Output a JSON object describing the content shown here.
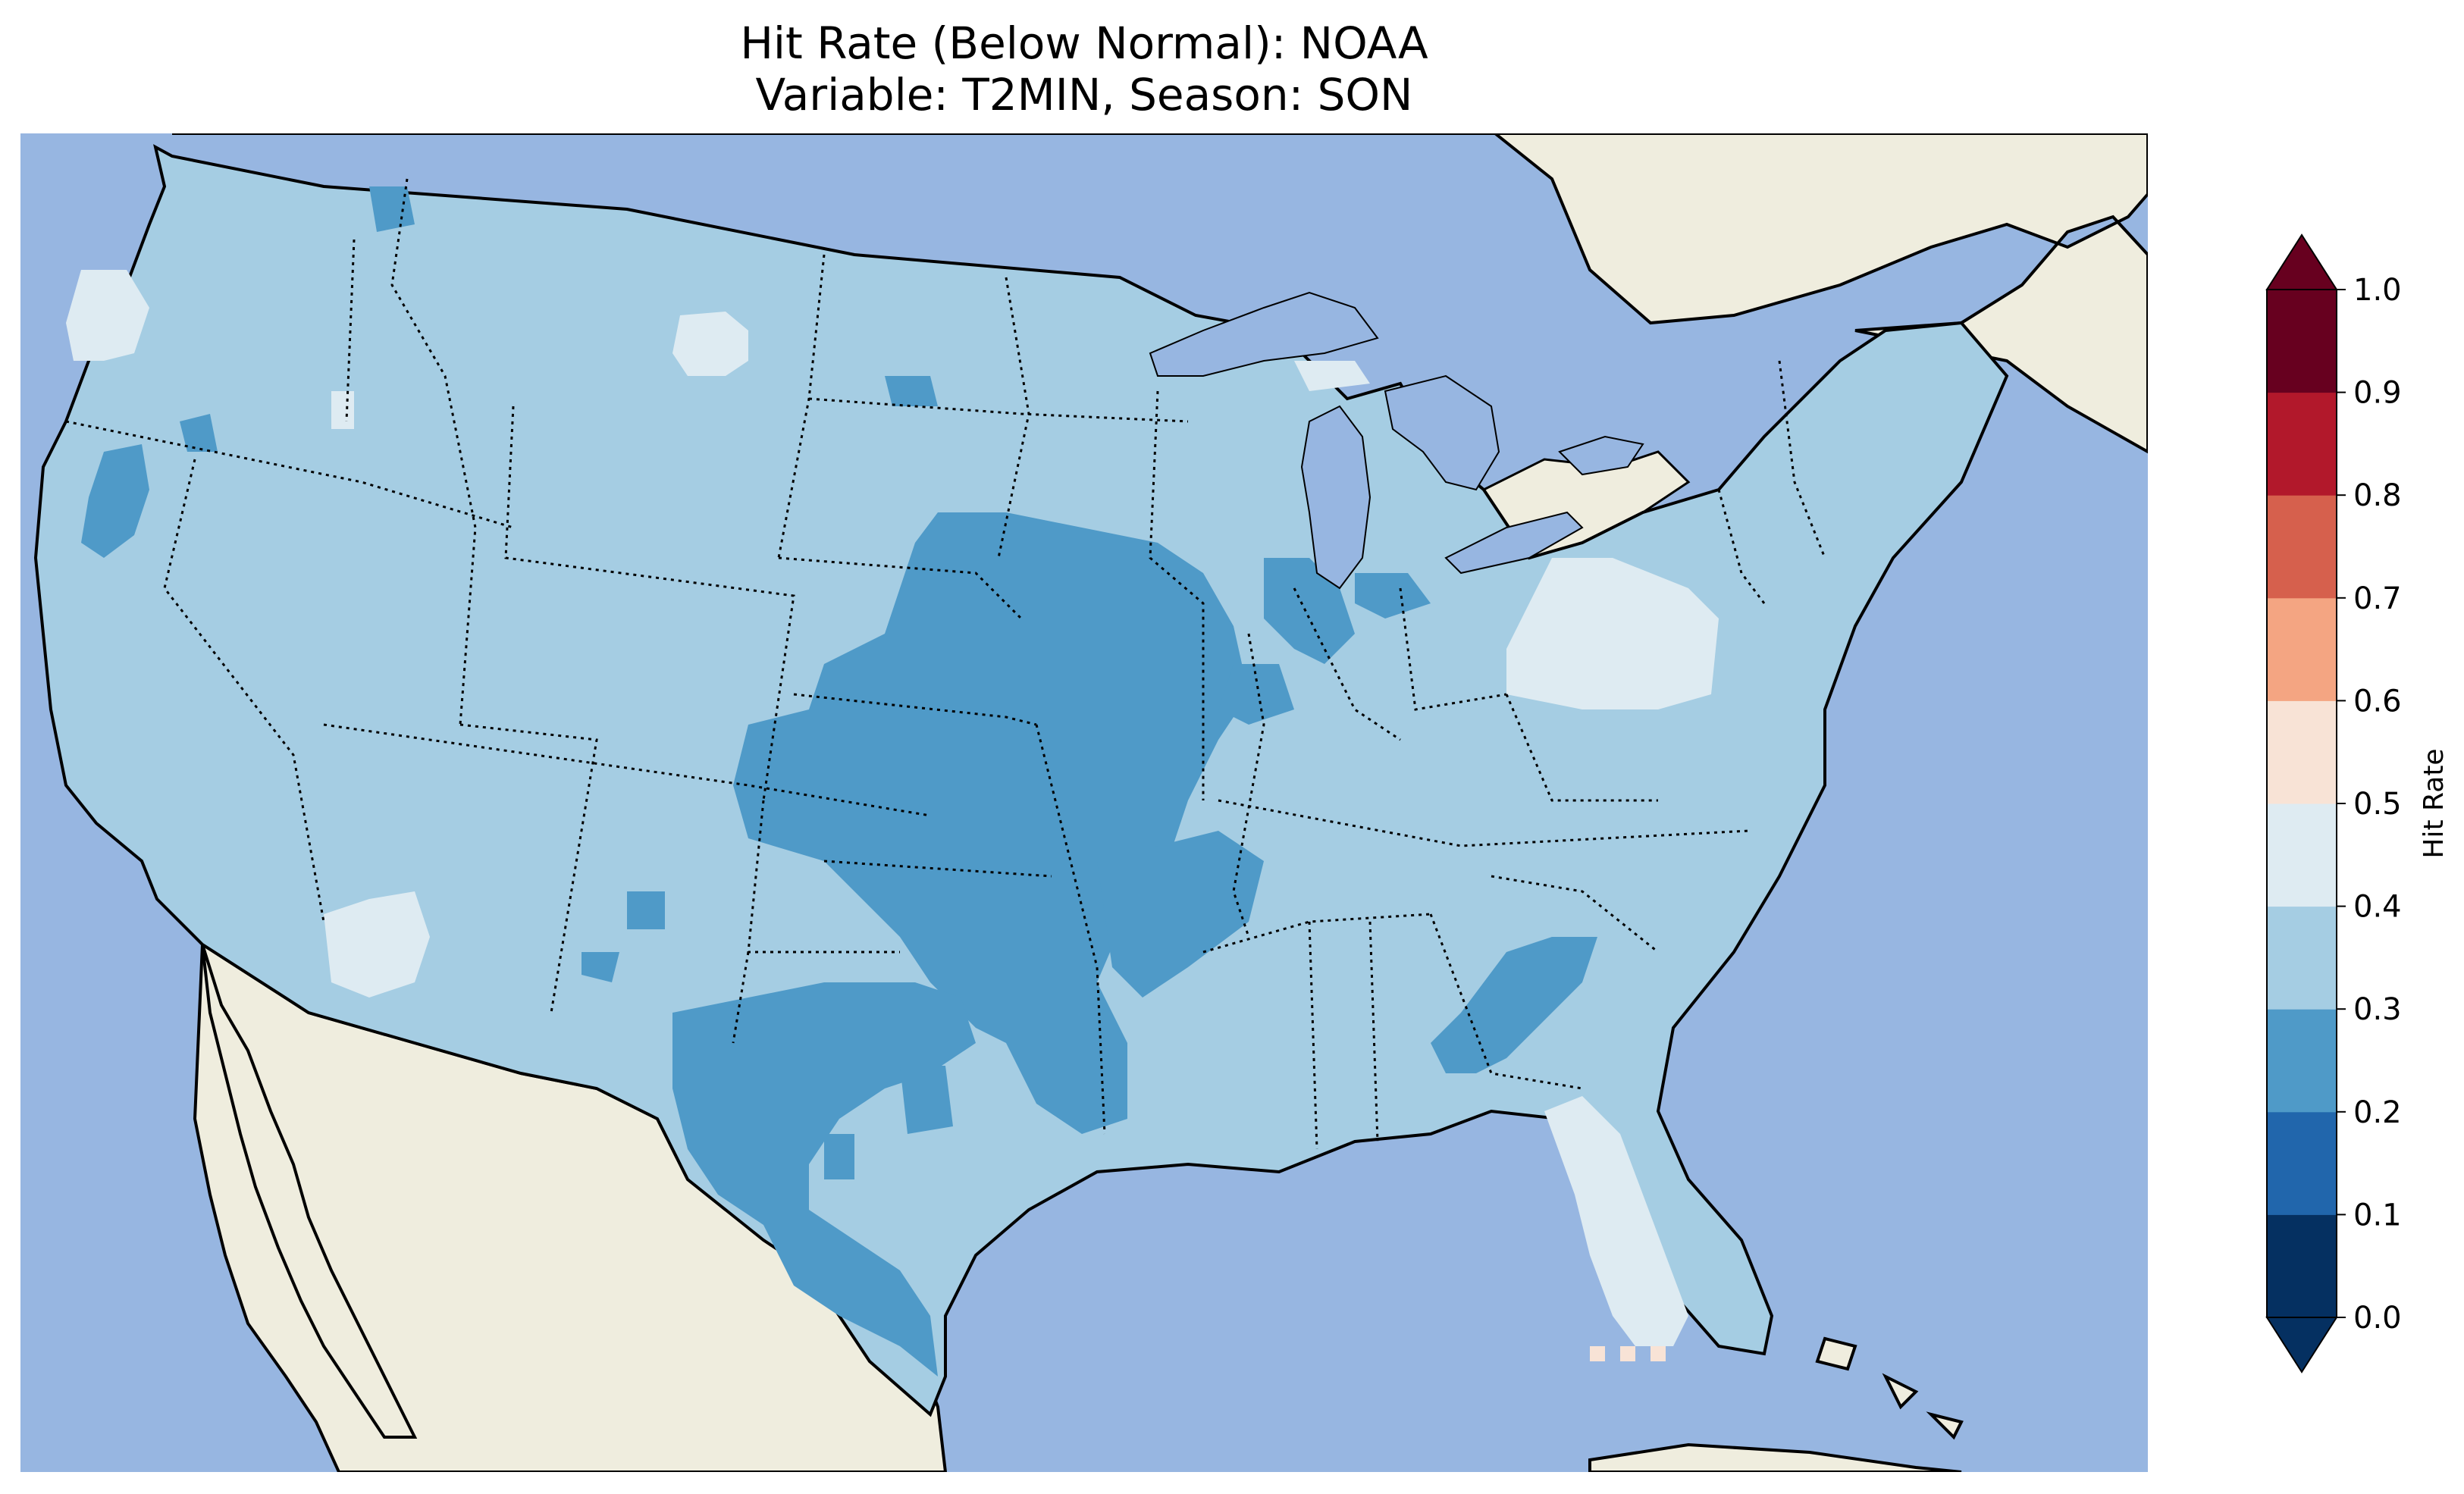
{
  "title": {
    "line1": "Hit Rate (Below Normal): NOAA",
    "line2": "Variable: T2MIN, Season: SON"
  },
  "colors": {
    "ocean": "#97b6e1",
    "land": "#efedde",
    "lakes": "#97b6e1",
    "coastline": "#000000",
    "borders": "#000000"
  },
  "colorbar": {
    "label": "Hit Rate",
    "ticks": [
      "0.0",
      "0.1",
      "0.2",
      "0.3",
      "0.4",
      "0.5",
      "0.6",
      "0.7",
      "0.8",
      "0.9",
      "1.0"
    ],
    "bins": [
      {
        "range": [
          0.0,
          0.1
        ],
        "color": "#053061"
      },
      {
        "range": [
          0.1,
          0.2
        ],
        "color": "#2166ac"
      },
      {
        "range": [
          0.2,
          0.3
        ],
        "color": "#4f9ac8"
      },
      {
        "range": [
          0.3,
          0.4
        ],
        "color": "#a5cde3"
      },
      {
        "range": [
          0.4,
          0.5
        ],
        "color": "#deebf2"
      },
      {
        "range": [
          0.5,
          0.6
        ],
        "color": "#f8e3d6"
      },
      {
        "range": [
          0.6,
          0.7
        ],
        "color": "#f4a582"
      },
      {
        "range": [
          0.7,
          0.8
        ],
        "color": "#d6604d"
      },
      {
        "range": [
          0.8,
          0.9
        ],
        "color": "#b2182b"
      },
      {
        "range": [
          0.9,
          1.0
        ],
        "color": "#67001f"
      }
    ],
    "extend": "both"
  },
  "map_regions": [
    {
      "name": "conus-base",
      "value_bin": "0.3-0.4"
    },
    {
      "name": "central-plains",
      "value_bin": "0.2-0.3"
    },
    {
      "name": "south-texas",
      "value_bin": "0.2-0.3"
    },
    {
      "name": "georgia-carolina",
      "value_bin": "0.2-0.3"
    },
    {
      "name": "iowa-illinois",
      "value_bin": "0.2-0.3"
    },
    {
      "name": "north-california",
      "value_bin": "0.2-0.3"
    },
    {
      "name": "florida",
      "value_bin": "0.4-0.5"
    },
    {
      "name": "new-york-pennsylvania",
      "value_bin": "0.4-0.5"
    },
    {
      "name": "oregon-coast",
      "value_bin": "0.4-0.5"
    },
    {
      "name": "arizona-south",
      "value_bin": "0.4-0.5"
    },
    {
      "name": "montana-central",
      "value_bin": "0.4-0.5"
    },
    {
      "name": "michigan-upper",
      "value_bin": "0.4-0.5"
    },
    {
      "name": "florida-keys",
      "value_bin": "0.5-0.6"
    }
  ]
}
